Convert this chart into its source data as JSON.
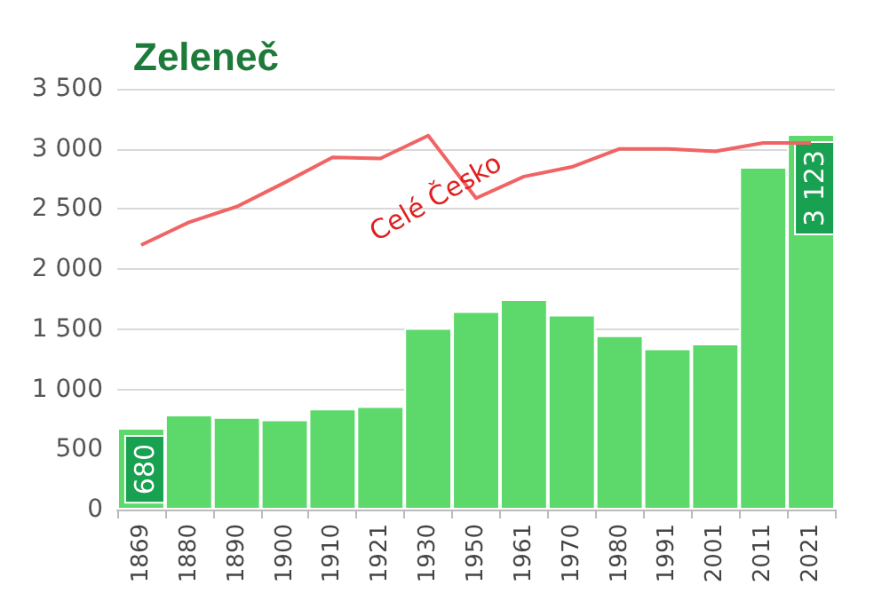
{
  "chart_data": {
    "type": "bar",
    "title": "Zeleneč",
    "categories": [
      "1869",
      "1880",
      "1890",
      "1900",
      "1910",
      "1921",
      "1930",
      "1950",
      "1961",
      "1970",
      "1980",
      "1991",
      "2001",
      "2011",
      "2021"
    ],
    "series": [
      {
        "color": "#5cd96a",
        "values": [
          680,
          790,
          770,
          750,
          840,
          860,
          1510,
          1650,
          1750,
          1620,
          1450,
          1340,
          1380,
          2850,
          3123
        ],
        "value_labels": [
          "680",
          null,
          null,
          null,
          null,
          null,
          null,
          null,
          null,
          null,
          null,
          null,
          null,
          null,
          "3 123"
        ]
      },
      {
        "type": "line",
        "name": "Celé Česko",
        "color": "#f06464",
        "values": [
          2200,
          2390,
          2520,
          2720,
          2930,
          2920,
          3110,
          2590,
          2770,
          2850,
          3000,
          3000,
          2980,
          3050,
          3050
        ]
      }
    ],
    "ylim": [
      0,
      3500
    ],
    "yticks": [
      0,
      500,
      {
        "value": 1000,
        "label": "1 000"
      },
      {
        "value": 1500,
        "label": "1 500"
      },
      {
        "value": 2000,
        "label": "2 000"
      },
      {
        "value": 2500,
        "label": "2 500"
      },
      {
        "value": 3000,
        "label": "3 000"
      },
      {
        "value": 3500,
        "label": "3 500"
      }
    ],
    "grid": "y",
    "legend": false,
    "marker": "none"
  }
}
